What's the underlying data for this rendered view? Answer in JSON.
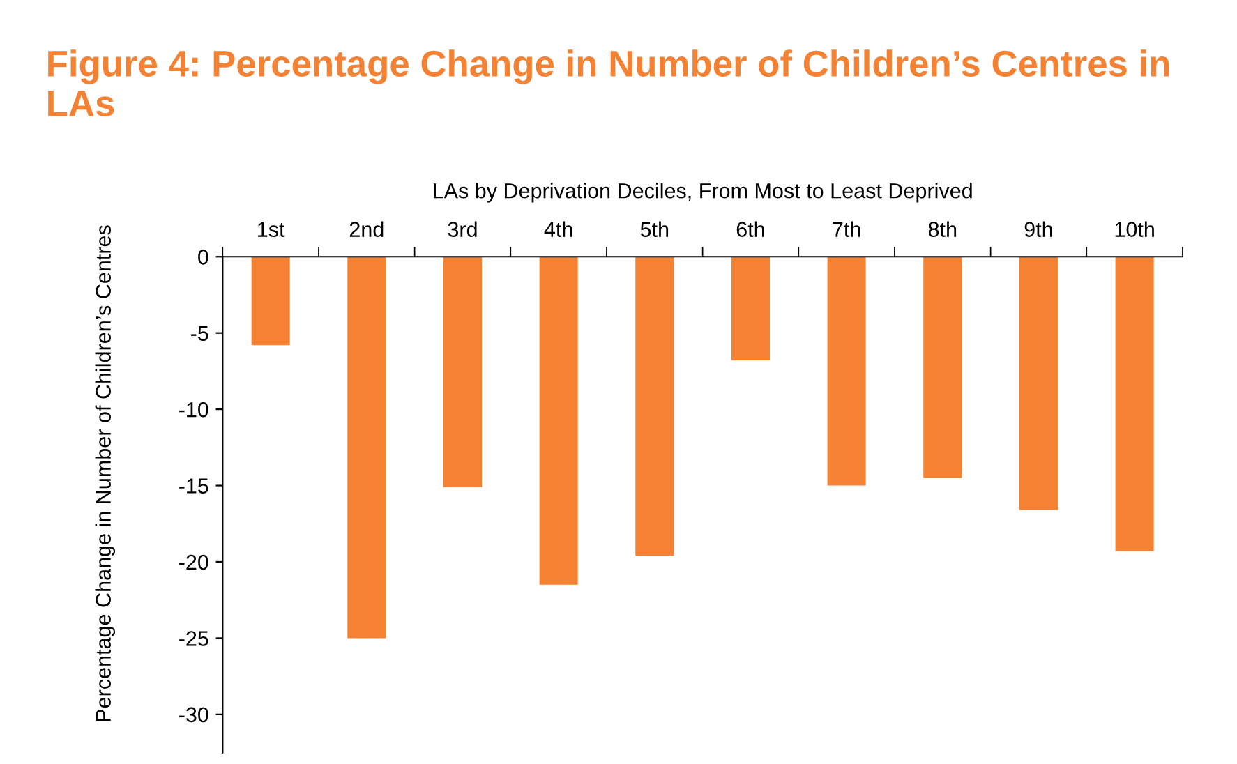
{
  "chart_data": {
    "type": "bar",
    "title": "Figure 4: Percentage Change in Number of Children’s Centres in LAs",
    "xlabel": "LAs by Deprivation Deciles, From Most to Least Deprived",
    "ylabel": "Percentage Change in Number of Children’s Centres",
    "categories": [
      "1st",
      "2nd",
      "3rd",
      "4th",
      "5th",
      "6th",
      "7th",
      "8th",
      "9th",
      "10th"
    ],
    "values": [
      -5.8,
      -25.0,
      -15.1,
      -21.5,
      -19.6,
      -6.8,
      -15.0,
      -14.5,
      -16.6,
      -19.3
    ],
    "color": "#f58233",
    "ylim": [
      -32.5,
      0
    ],
    "yticks": [
      0,
      -5,
      -10,
      -15,
      -20,
      -25,
      -30
    ],
    "grid": false,
    "legend": false
  }
}
